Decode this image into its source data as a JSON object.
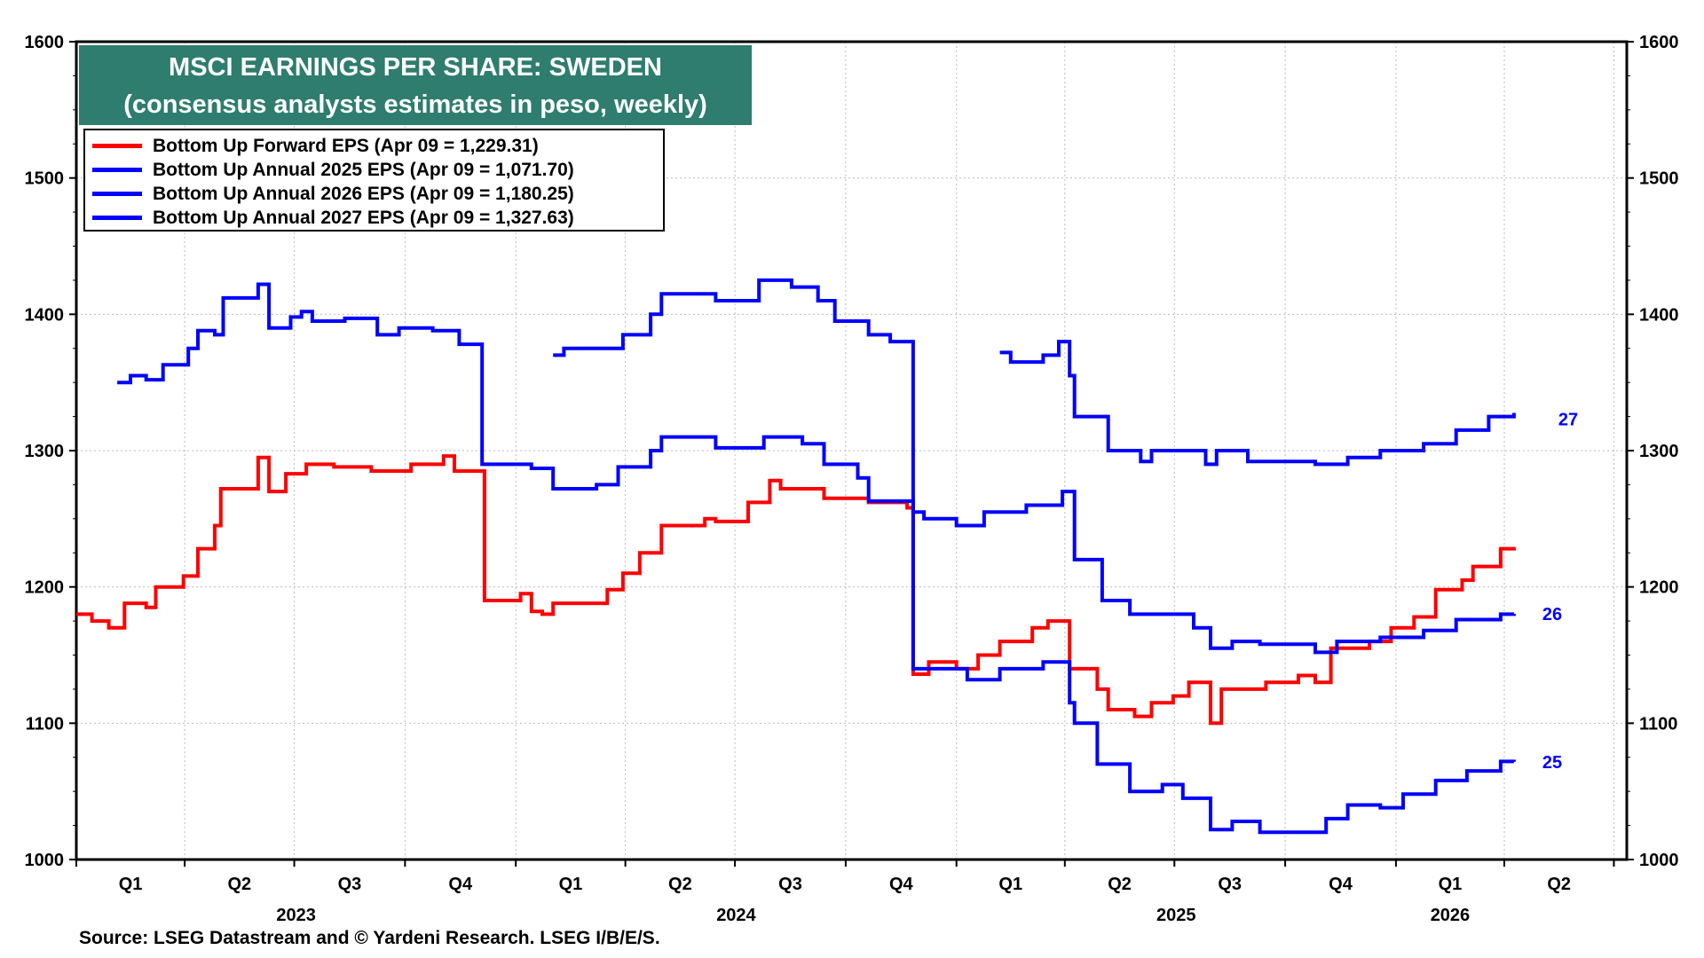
{
  "chart_data": {
    "type": "line",
    "title": "MSCI EARNINGS PER SHARE: SWEDEN",
    "subtitle": "(consensus analysts estimates in peso, weekly)",
    "source": "Source: LSEG Datastream and © Yardeni Research. LSEG I/B/E/S.",
    "ylim": [
      1000,
      1600
    ],
    "yticks": [
      1000,
      1100,
      1200,
      1300,
      1400,
      1500,
      1600
    ],
    "xlim": [
      "2023-01-01",
      "2026-06-30"
    ],
    "quarter_labels": [
      "Q1",
      "Q2",
      "Q3",
      "Q4",
      "Q1",
      "Q2",
      "Q3",
      "Q4",
      "Q1",
      "Q2",
      "Q3",
      "Q4",
      "Q1",
      "Q2"
    ],
    "year_labels": [
      "2023",
      "2024",
      "2025",
      "2026"
    ],
    "grid": true,
    "legend_position": "top-left",
    "series": [
      {
        "name": "Bottom Up Forward EPS (Apr 09 = 1,229.31)",
        "color": "#ff0000",
        "end_label": "",
        "points": [
          [
            "2023-01-01",
            1180
          ],
          [
            "2023-01-14",
            1175
          ],
          [
            "2023-01-28",
            1170
          ],
          [
            "2023-02-10",
            1188
          ],
          [
            "2023-02-28",
            1185
          ],
          [
            "2023-03-08",
            1200
          ],
          [
            "2023-03-31",
            1208
          ],
          [
            "2023-04-12",
            1228
          ],
          [
            "2023-04-26",
            1245
          ],
          [
            "2023-05-01",
            1272
          ],
          [
            "2023-06-01",
            1295
          ],
          [
            "2023-06-10",
            1270
          ],
          [
            "2023-06-24",
            1283
          ],
          [
            "2023-07-11",
            1290
          ],
          [
            "2023-08-03",
            1288
          ],
          [
            "2023-09-03",
            1285
          ],
          [
            "2023-10-06",
            1290
          ],
          [
            "2023-11-02",
            1296
          ],
          [
            "2023-11-11",
            1285
          ],
          [
            "2023-12-06",
            1190
          ],
          [
            "2024-01-05",
            1195
          ],
          [
            "2024-01-14",
            1182
          ],
          [
            "2024-01-23",
            1180
          ],
          [
            "2024-02-01",
            1188
          ],
          [
            "2024-03-17",
            1198
          ],
          [
            "2024-03-30",
            1210
          ],
          [
            "2024-04-13",
            1225
          ],
          [
            "2024-05-01",
            1245
          ],
          [
            "2024-06-06",
            1250
          ],
          [
            "2024-06-15",
            1248
          ],
          [
            "2024-07-12",
            1262
          ],
          [
            "2024-07-30",
            1278
          ],
          [
            "2024-08-08",
            1272
          ],
          [
            "2024-09-13",
            1265
          ],
          [
            "2024-10-20",
            1262
          ],
          [
            "2024-11-21",
            1258
          ],
          [
            "2024-11-26",
            1136
          ],
          [
            "2024-12-09",
            1145
          ],
          [
            "2025-01-01",
            1140
          ],
          [
            "2025-01-19",
            1150
          ],
          [
            "2025-02-06",
            1160
          ],
          [
            "2025-03-05",
            1170
          ],
          [
            "2025-03-18",
            1175
          ],
          [
            "2025-04-05",
            1140
          ],
          [
            "2025-04-28",
            1125
          ],
          [
            "2025-05-07",
            1110
          ],
          [
            "2025-05-29",
            1105
          ],
          [
            "2025-06-12",
            1115
          ],
          [
            "2025-06-30",
            1120
          ],
          [
            "2025-07-13",
            1130
          ],
          [
            "2025-07-31",
            1100
          ],
          [
            "2025-08-09",
            1125
          ],
          [
            "2025-09-15",
            1130
          ],
          [
            "2025-10-12",
            1135
          ],
          [
            "2025-10-26",
            1130
          ],
          [
            "2025-11-08",
            1155
          ],
          [
            "2025-12-10",
            1160
          ],
          [
            "2025-12-28",
            1170
          ],
          [
            "2026-01-16",
            1178
          ],
          [
            "2026-02-03",
            1198
          ],
          [
            "2026-02-25",
            1205
          ],
          [
            "2026-03-06",
            1215
          ],
          [
            "2026-03-29",
            1228
          ],
          [
            "2026-04-09",
            1229.31
          ]
        ]
      },
      {
        "name": "Bottom Up Annual 2025 EPS (Apr 09 = 1,071.70)",
        "color": "#0000ff",
        "end_label": "25",
        "points": [
          [
            "2023-02-04",
            1350
          ],
          [
            "2023-02-15",
            1355
          ],
          [
            "2023-02-28",
            1352
          ],
          [
            "2023-03-14",
            1363
          ],
          [
            "2023-04-04",
            1375
          ],
          [
            "2023-04-12",
            1388
          ],
          [
            "2023-04-26",
            1385
          ],
          [
            "2023-05-03",
            1412
          ],
          [
            "2023-06-01",
            1422
          ],
          [
            "2023-06-10",
            1390
          ],
          [
            "2023-06-28",
            1398
          ],
          [
            "2023-07-07",
            1402
          ],
          [
            "2023-07-16",
            1395
          ],
          [
            "2023-08-12",
            1397
          ],
          [
            "2023-09-08",
            1385
          ],
          [
            "2023-09-26",
            1390
          ],
          [
            "2023-10-24",
            1388
          ],
          [
            "2023-11-15",
            1378
          ],
          [
            "2023-12-04",
            1290
          ],
          [
            "2024-01-14",
            1287
          ],
          [
            "2024-02-01",
            1272
          ],
          [
            "2024-03-08",
            1275
          ],
          [
            "2024-03-26",
            1288
          ],
          [
            "2024-04-22",
            1300
          ],
          [
            "2024-05-01",
            1310
          ],
          [
            "2024-06-15",
            1302
          ],
          [
            "2024-07-25",
            1310
          ],
          [
            "2024-08-26",
            1305
          ],
          [
            "2024-09-13",
            1290
          ],
          [
            "2024-10-11",
            1280
          ],
          [
            "2024-10-20",
            1263
          ],
          [
            "2024-11-26",
            1140
          ],
          [
            "2025-01-10",
            1132
          ],
          [
            "2025-02-06",
            1140
          ],
          [
            "2025-03-14",
            1145
          ],
          [
            "2025-04-05",
            1115
          ],
          [
            "2025-04-09",
            1100
          ],
          [
            "2025-04-28",
            1070
          ],
          [
            "2025-05-25",
            1050
          ],
          [
            "2025-06-21",
            1055
          ],
          [
            "2025-07-08",
            1045
          ],
          [
            "2025-07-31",
            1022
          ],
          [
            "2025-08-18",
            1028
          ],
          [
            "2025-09-10",
            1020
          ],
          [
            "2025-11-04",
            1030
          ],
          [
            "2025-11-22",
            1040
          ],
          [
            "2025-12-19",
            1038
          ],
          [
            "2026-01-07",
            1048
          ],
          [
            "2026-02-03",
            1058
          ],
          [
            "2026-03-01",
            1065
          ],
          [
            "2026-03-29",
            1072
          ],
          [
            "2026-04-09",
            1071.7
          ]
        ]
      },
      {
        "name": "Bottom Up Annual 2026 EPS (Apr 09 = 1,180.25)",
        "color": "#0000ff",
        "end_label": "26",
        "points": [
          [
            "2024-02-01",
            1370
          ],
          [
            "2024-02-10",
            1375
          ],
          [
            "2024-03-30",
            1385
          ],
          [
            "2024-04-22",
            1400
          ],
          [
            "2024-05-01",
            1415
          ],
          [
            "2024-06-15",
            1410
          ],
          [
            "2024-07-21",
            1425
          ],
          [
            "2024-08-17",
            1420
          ],
          [
            "2024-09-08",
            1410
          ],
          [
            "2024-09-22",
            1395
          ],
          [
            "2024-10-20",
            1385
          ],
          [
            "2024-11-07",
            1380
          ],
          [
            "2024-11-26",
            1255
          ],
          [
            "2024-12-05",
            1250
          ],
          [
            "2025-01-01",
            1245
          ],
          [
            "2025-01-24",
            1255
          ],
          [
            "2025-02-28",
            1260
          ],
          [
            "2025-03-30",
            1270
          ],
          [
            "2025-04-09",
            1220
          ],
          [
            "2025-05-02",
            1190
          ],
          [
            "2025-05-25",
            1180
          ],
          [
            "2025-07-17",
            1170
          ],
          [
            "2025-07-31",
            1155
          ],
          [
            "2025-08-18",
            1160
          ],
          [
            "2025-09-10",
            1158
          ],
          [
            "2025-10-26",
            1152
          ],
          [
            "2025-11-13",
            1160
          ],
          [
            "2025-12-19",
            1163
          ],
          [
            "2026-01-24",
            1168
          ],
          [
            "2026-02-20",
            1176
          ],
          [
            "2026-03-29",
            1180
          ],
          [
            "2026-04-09",
            1180.25
          ]
        ]
      },
      {
        "name": "Bottom Up Annual 2027 EPS (Apr 09 = 1,327.63)",
        "color": "#0000ff",
        "end_label": "27",
        "points": [
          [
            "2025-02-06",
            1372
          ],
          [
            "2025-02-15",
            1365
          ],
          [
            "2025-03-14",
            1370
          ],
          [
            "2025-03-27",
            1380
          ],
          [
            "2025-04-05",
            1355
          ],
          [
            "2025-04-09",
            1325
          ],
          [
            "2025-05-07",
            1300
          ],
          [
            "2025-06-03",
            1292
          ],
          [
            "2025-06-12",
            1300
          ],
          [
            "2025-07-27",
            1290
          ],
          [
            "2025-08-05",
            1300
          ],
          [
            "2025-08-31",
            1292
          ],
          [
            "2025-10-26",
            1290
          ],
          [
            "2025-11-22",
            1295
          ],
          [
            "2025-12-19",
            1300
          ],
          [
            "2026-01-24",
            1305
          ],
          [
            "2026-02-20",
            1315
          ],
          [
            "2026-03-19",
            1325
          ],
          [
            "2026-04-09",
            1327.63
          ]
        ]
      }
    ]
  }
}
